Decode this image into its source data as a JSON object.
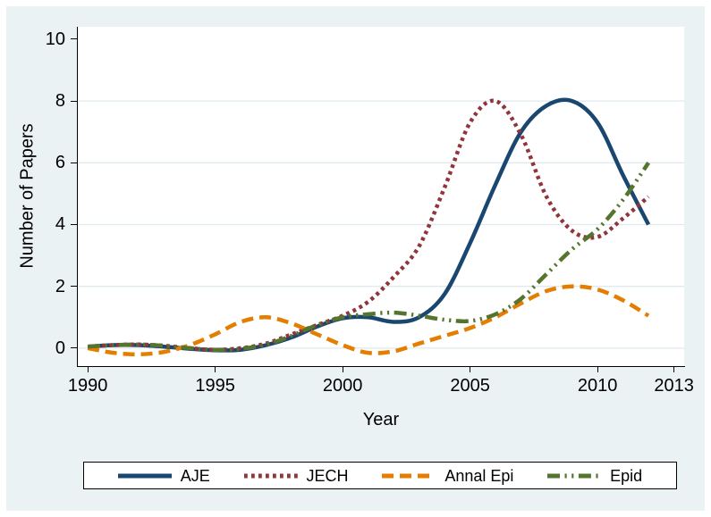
{
  "figure": {
    "outer_background": "#ffffff",
    "canvas_background": "#eaf2f3",
    "plot_background": "#ffffff",
    "grid_color": "#dfeaee",
    "axis_color": "#000000",
    "text_color": "#000000",
    "legend_background": "#ffffff",
    "legend_border_color": "#000000"
  },
  "chart_data": {
    "type": "line",
    "title": "",
    "xlabel": "Year",
    "ylabel": "Number of Papers",
    "x_ticks": [
      1990,
      1995,
      2000,
      2005,
      2010,
      2013
    ],
    "y_ticks": [
      0,
      2,
      4,
      6,
      8,
      10
    ],
    "grid_ticks": [
      0,
      2,
      4,
      6,
      8
    ],
    "xlim": [
      1989.61,
      2013.4
    ],
    "ylim": [
      -0.58,
      10.4
    ],
    "grid": "horizontal",
    "legend_position": "bottom",
    "x": [
      1990,
      1991,
      1992,
      1993,
      1994,
      1995,
      1996,
      1997,
      1998,
      1999,
      2000,
      2001,
      2002,
      2003,
      2004,
      2005,
      2006,
      2007,
      2008,
      2009,
      2010,
      2011,
      2012
    ],
    "series": [
      {
        "name": "AJE",
        "color": "#1a476f",
        "dash": "solid",
        "values": [
          0.05,
          0.1,
          0.1,
          0.05,
          -0.02,
          -0.07,
          -0.05,
          0.1,
          0.35,
          0.7,
          0.97,
          1.0,
          0.85,
          1.0,
          1.75,
          3.4,
          5.3,
          7.0,
          7.85,
          8.0,
          7.3,
          5.6,
          4.0
        ]
      },
      {
        "name": "JECH",
        "color": "#90353b",
        "dash": "dotted",
        "values": [
          0.05,
          0.1,
          0.12,
          0.08,
          0.0,
          -0.05,
          0.0,
          0.15,
          0.45,
          0.75,
          1.05,
          1.5,
          2.3,
          3.3,
          5.2,
          7.3,
          8.0,
          6.9,
          4.9,
          3.8,
          3.6,
          4.2,
          4.9
        ]
      },
      {
        "name": "Annal Epi",
        "color": "#e37e00",
        "dash": "dashed",
        "values": [
          0.0,
          -0.15,
          -0.2,
          -0.12,
          0.1,
          0.45,
          0.85,
          1.0,
          0.8,
          0.45,
          0.1,
          -0.15,
          -0.1,
          0.15,
          0.4,
          0.65,
          1.0,
          1.45,
          1.85,
          2.0,
          1.9,
          1.55,
          1.05
        ]
      },
      {
        "name": "Epid",
        "color": "#55752f",
        "dash": "dash-dot-dot",
        "values": [
          0.05,
          0.1,
          0.12,
          0.08,
          0.0,
          -0.05,
          -0.02,
          0.12,
          0.4,
          0.75,
          1.0,
          1.1,
          1.15,
          1.05,
          0.92,
          0.88,
          1.1,
          1.6,
          2.4,
          3.2,
          3.85,
          4.8,
          6.0
        ]
      }
    ]
  }
}
